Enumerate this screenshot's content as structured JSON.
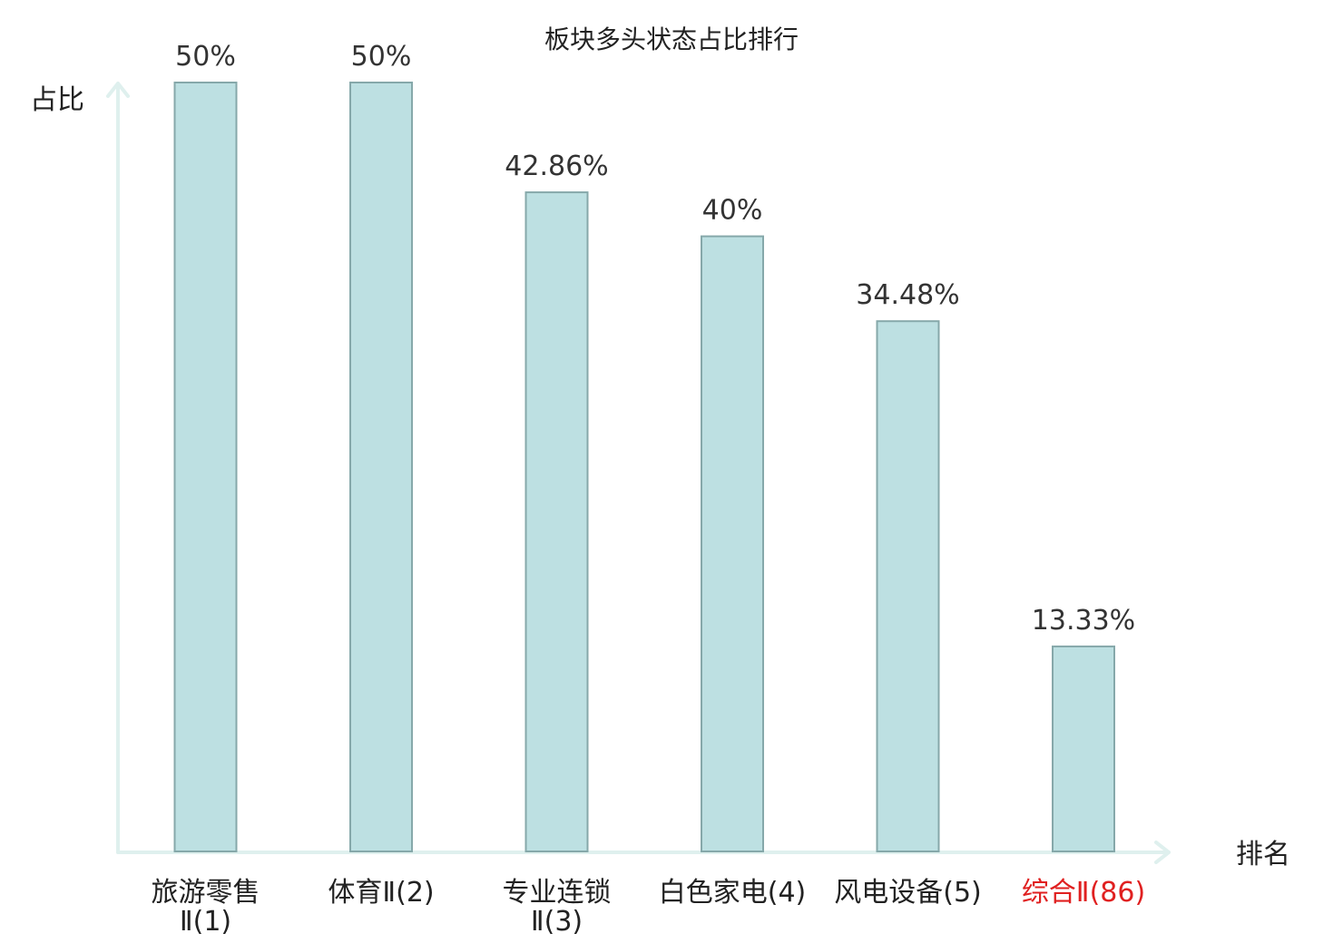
{
  "chart_data": {
    "type": "bar",
    "title": "板块多头状态占比排行",
    "ylabel": "占比",
    "xlabel": "排名",
    "categories": [
      [
        "旅游零售",
        "Ⅱ(1)"
      ],
      [
        "体育Ⅱ(2)"
      ],
      [
        "专业连锁",
        "Ⅱ(3)"
      ],
      [
        "白色家电(4)"
      ],
      [
        "风电设备(5)"
      ],
      [
        "综合Ⅱ(86)"
      ]
    ],
    "values": [
      50,
      50,
      42.86,
      40,
      34.48,
      13.33
    ],
    "value_labels": [
      "50%",
      "50%",
      "42.86%",
      "40%",
      "34.48%",
      "13.33%"
    ],
    "ylim": [
      0,
      50
    ],
    "grid": false,
    "legend": "none",
    "highlight_index": 5
  },
  "colors": {
    "bar_fill": "#bde0e2",
    "bar_stroke": "#86a8aa",
    "axis": "#dff0ee",
    "text": "#222222",
    "highlight_text": "#e02020"
  }
}
